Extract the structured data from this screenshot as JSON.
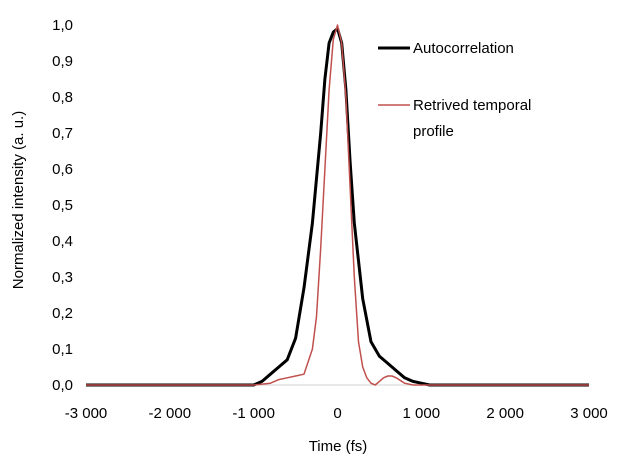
{
  "chart_data": {
    "type": "line",
    "xlabel": "Time (fs)",
    "ylabel": "Normalized intensity (a. u.)",
    "xlim": [
      -3000,
      3000
    ],
    "ylim": [
      0,
      1
    ],
    "xticks": [
      -3000,
      -2000,
      -1000,
      0,
      1000,
      2000,
      3000
    ],
    "xtick_labels": [
      "-3 000",
      "-2 000",
      "-1 000",
      "0",
      "1 000",
      "2 000",
      "3 000"
    ],
    "yticks": [
      0,
      0.1,
      0.2,
      0.3,
      0.4,
      0.5,
      0.6,
      0.7,
      0.8,
      0.9,
      1.0
    ],
    "ytick_labels": [
      "0,0",
      "0,1",
      "0,2",
      "0,3",
      "0,4",
      "0,5",
      "0,6",
      "0,7",
      "0,8",
      "0,9",
      "1,0"
    ],
    "grid": false,
    "legend_position": "top-right",
    "series": [
      {
        "name": "Autocorrelation",
        "color": "#000000",
        "x": [
          -3000,
          -1000,
          -900,
          -800,
          -700,
          -600,
          -500,
          -400,
          -300,
          -200,
          -150,
          -100,
          -50,
          0,
          50,
          100,
          150,
          200,
          300,
          400,
          500,
          600,
          700,
          800,
          900,
          1000,
          1100,
          3000
        ],
        "y": [
          0.0,
          0.0,
          0.01,
          0.03,
          0.05,
          0.07,
          0.13,
          0.27,
          0.45,
          0.7,
          0.85,
          0.95,
          0.98,
          0.99,
          0.95,
          0.82,
          0.62,
          0.45,
          0.24,
          0.12,
          0.08,
          0.06,
          0.04,
          0.02,
          0.01,
          0.005,
          0.0,
          0.0
        ]
      },
      {
        "name": "Retrived temporal profile",
        "color": "#c0504d",
        "x": [
          -3000,
          -1000,
          -800,
          -700,
          -600,
          -500,
          -400,
          -300,
          -250,
          -200,
          -150,
          -100,
          -50,
          0,
          50,
          100,
          150,
          200,
          250,
          300,
          350,
          400,
          450,
          500,
          550,
          600,
          650,
          700,
          800,
          900,
          1000,
          3000
        ],
        "y": [
          0.0,
          0.0,
          0.005,
          0.015,
          0.02,
          0.025,
          0.03,
          0.1,
          0.19,
          0.38,
          0.6,
          0.82,
          0.96,
          1.0,
          0.95,
          0.8,
          0.55,
          0.3,
          0.12,
          0.05,
          0.02,
          0.005,
          0.0,
          0.01,
          0.02,
          0.025,
          0.025,
          0.02,
          0.005,
          0.0,
          0.0,
          0.0
        ]
      }
    ]
  }
}
